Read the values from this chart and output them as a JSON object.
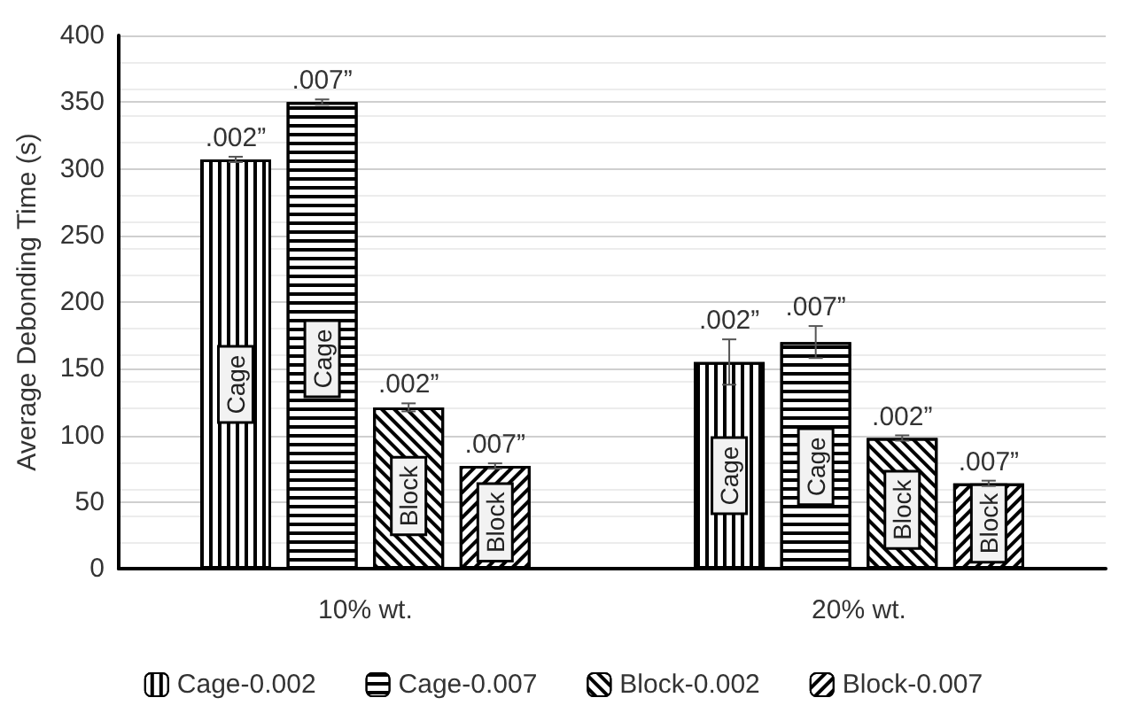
{
  "chart_data": {
    "type": "bar",
    "ylabel": "Average Debonding Time (s)",
    "categories": [
      "10% wt.",
      "20% wt."
    ],
    "series": [
      {
        "name": "Cage-0.002",
        "color": "#ffffff",
        "values": [
          307,
          155
        ],
        "errors": [
          2,
          17
        ]
      },
      {
        "name": "Cage-0.007",
        "color": "#ffffff",
        "values": [
          350,
          170
        ],
        "errors": [
          2,
          12
        ]
      },
      {
        "name": "Block-0.002",
        "color": "#ffffff",
        "values": [
          121,
          98
        ],
        "errors": [
          3,
          2
        ]
      },
      {
        "name": "Block-0.007",
        "color": "#ffffff",
        "values": [
          77,
          64
        ],
        "errors": [
          2,
          2
        ]
      }
    ],
    "annotations": [
      ".002”",
      ".007”",
      ".002”",
      ".007”",
      ".002”",
      ".007”",
      ".002”",
      ".007”",
      "Cage",
      "Cage",
      "Block",
      "Block",
      "Cage",
      "Cage",
      "Block",
      "Block"
    ],
    "ylim": [
      0,
      400
    ],
    "yticks": [
      0,
      50,
      100,
      150,
      200,
      250,
      300,
      350,
      400
    ],
    "grid": "y",
    "legend": "bottom"
  }
}
